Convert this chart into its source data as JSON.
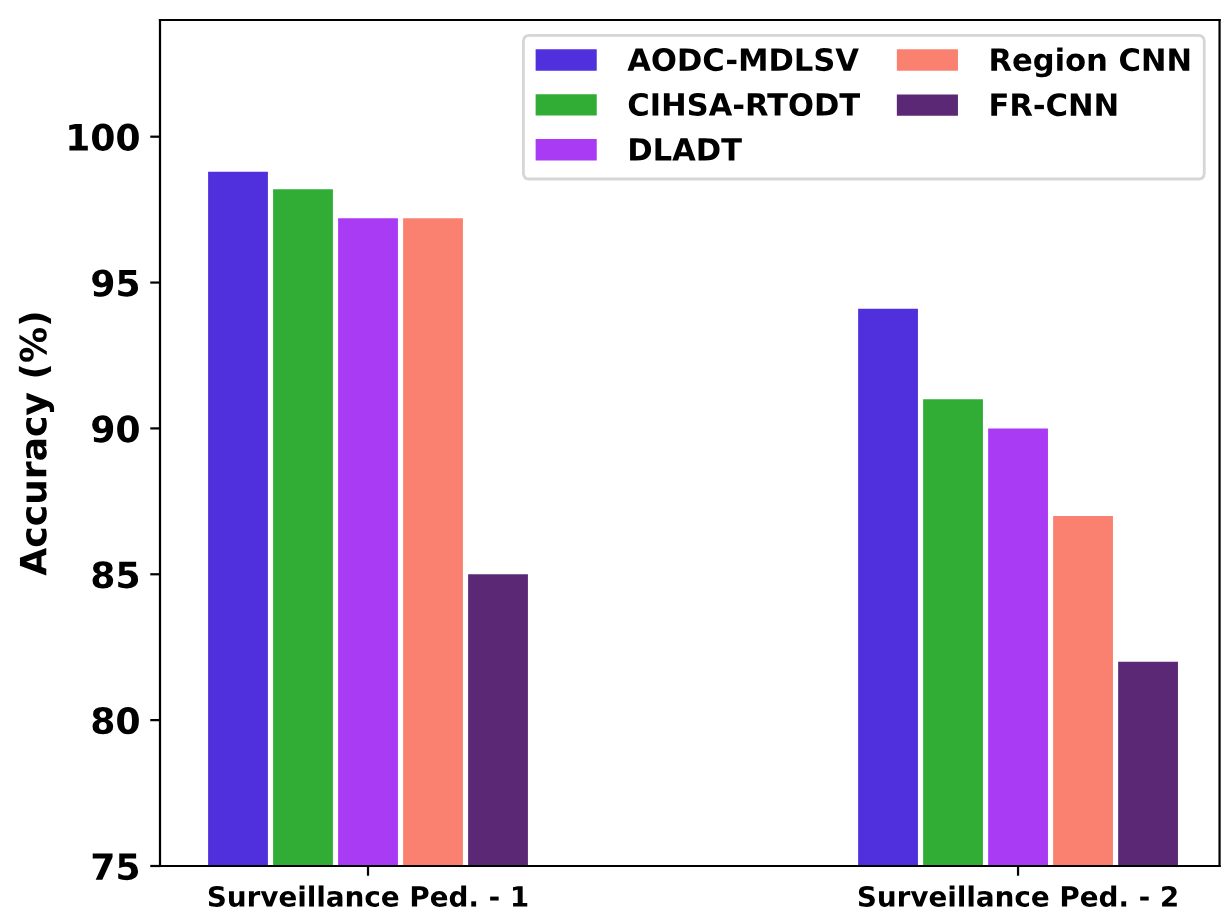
{
  "chart_data": {
    "type": "bar",
    "ylabel": "Accuracy (%)",
    "categories": [
      "Surveillance Ped. - 1",
      "Surveillance Ped. - 2"
    ],
    "series": [
      {
        "name": "AODC-MDLSV",
        "color": "#5030dd",
        "values": [
          98.8,
          94.1
        ]
      },
      {
        "name": "CIHSA-RTODT",
        "color": "#31ad36",
        "values": [
          98.2,
          91.0
        ]
      },
      {
        "name": "DLADT",
        "color": "#a93bf5",
        "values": [
          97.2,
          90.0
        ]
      },
      {
        "name": "Region CNN",
        "color": "#fa8070",
        "values": [
          97.2,
          87.0
        ]
      },
      {
        "name": "FR-CNN",
        "color": "#5a2875",
        "values": [
          85.0,
          82.0
        ]
      }
    ],
    "ylim": [
      75,
      104
    ],
    "yticks": [
      75,
      80,
      85,
      90,
      95,
      100
    ],
    "grid": false,
    "legend": "top right"
  }
}
